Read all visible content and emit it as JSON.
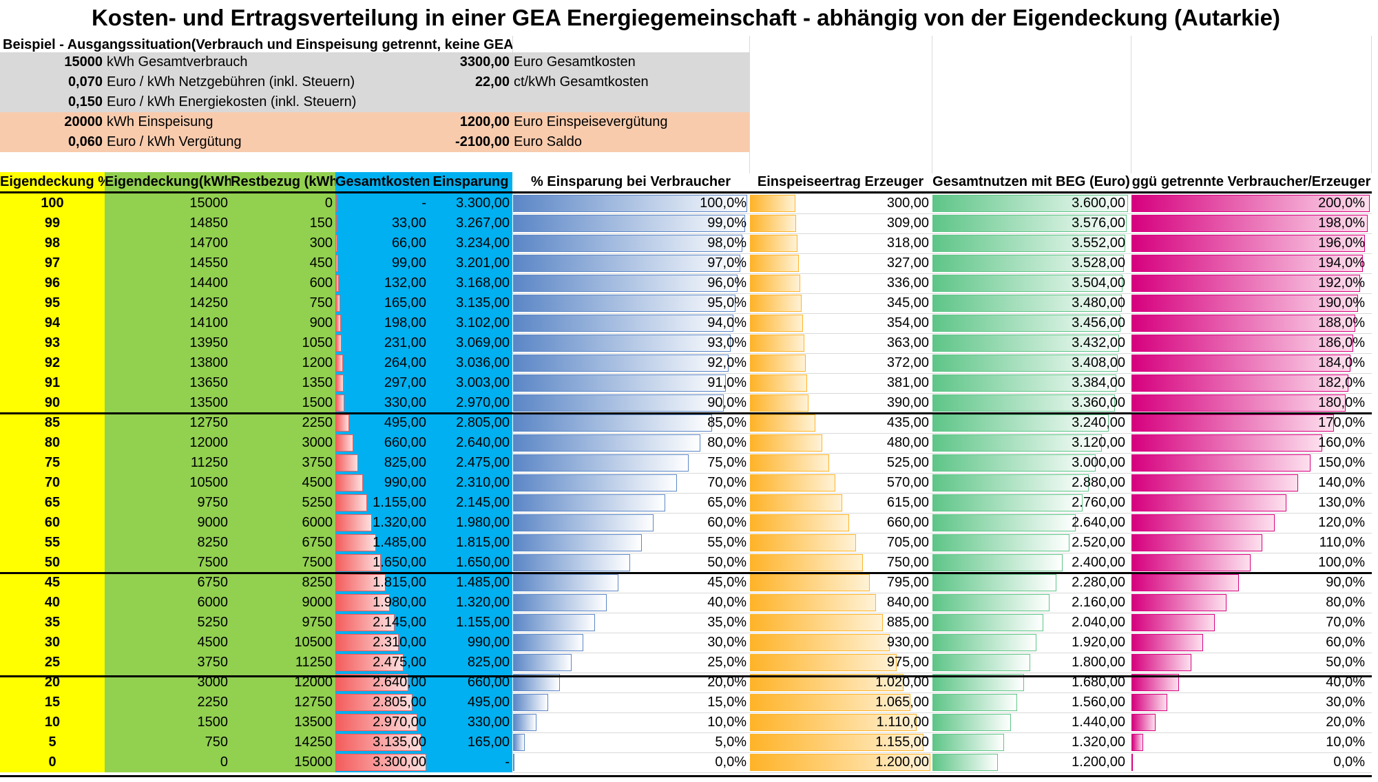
{
  "title": "Kosten- und Ertragsverteilung in einer GEA Energiegemeinschaft - abhängig von der Eigendeckung (Autarkie)",
  "example_heading": "Beispiel - Ausgangssituation(Verbrauch und Einspeisung getrennt, keine GEA):",
  "info_left": [
    {
      "num": "15000",
      "label": "kWh Gesamtverbrauch"
    },
    {
      "num": "0,070",
      "label": "Euro / kWh Netzgebühren (inkl. Steuern)"
    },
    {
      "num": "0,150",
      "label": "Euro / kWh Energiekosten (inkl. Steuern)"
    },
    {
      "num": "20000",
      "label": "kWh Einspeisung"
    },
    {
      "num": "0,060",
      "label": "Euro / kWh Vergütung"
    }
  ],
  "info_right": [
    {
      "num": "3300,00",
      "label": "Euro Gesamtkosten"
    },
    {
      "num": "22,00",
      "label": "ct/kWh Gesamtkosten"
    },
    {
      "num": "",
      "label": ""
    },
    {
      "num": "1200,00",
      "label": "Euro Einspeisevergütung"
    },
    {
      "num": "-2100,00",
      "label": "Euro Saldo"
    }
  ],
  "headers": {
    "eig_pct": "Eigendeckung %",
    "eig_kwh": "Eigendeckung(kWh)",
    "rest": "Restbezug (kWh)",
    "kosten": "Gesamtkosten",
    "einsp": "Einsparung",
    "pct_ver": "% Einsparung bei Verbraucher",
    "ertrag": "Einspeiseertrag Erzeuger",
    "nutzen": "Gesamtnutzen mit BEG (Euro)",
    "ggu": "ggü getrennte Verbraucher/Erzeuger"
  },
  "colors": {
    "yellow": "#ffff00",
    "green": "#92d050",
    "blue": "#00b0f0",
    "peach": "#f8cbad",
    "grey": "#d9d9d9"
  },
  "rows": [
    {
      "pct": "100",
      "kwh": "15000",
      "rest": "0",
      "kosten": "-",
      "einsp": "3.300,00",
      "pv": "100,0%",
      "er": "300,00",
      "nu": "3.600,00",
      "gg": "200,0%"
    },
    {
      "pct": "99",
      "kwh": "14850",
      "rest": "150",
      "kosten": "33,00",
      "einsp": "3.267,00",
      "pv": "99,0%",
      "er": "309,00",
      "nu": "3.576,00",
      "gg": "198,0%"
    },
    {
      "pct": "98",
      "kwh": "14700",
      "rest": "300",
      "kosten": "66,00",
      "einsp": "3.234,00",
      "pv": "98,0%",
      "er": "318,00",
      "nu": "3.552,00",
      "gg": "196,0%"
    },
    {
      "pct": "97",
      "kwh": "14550",
      "rest": "450",
      "kosten": "99,00",
      "einsp": "3.201,00",
      "pv": "97,0%",
      "er": "327,00",
      "nu": "3.528,00",
      "gg": "194,0%"
    },
    {
      "pct": "96",
      "kwh": "14400",
      "rest": "600",
      "kosten": "132,00",
      "einsp": "3.168,00",
      "pv": "96,0%",
      "er": "336,00",
      "nu": "3.504,00",
      "gg": "192,0%"
    },
    {
      "pct": "95",
      "kwh": "14250",
      "rest": "750",
      "kosten": "165,00",
      "einsp": "3.135,00",
      "pv": "95,0%",
      "er": "345,00",
      "nu": "3.480,00",
      "gg": "190,0%"
    },
    {
      "pct": "94",
      "kwh": "14100",
      "rest": "900",
      "kosten": "198,00",
      "einsp": "3.102,00",
      "pv": "94,0%",
      "er": "354,00",
      "nu": "3.456,00",
      "gg": "188,0%"
    },
    {
      "pct": "93",
      "kwh": "13950",
      "rest": "1050",
      "kosten": "231,00",
      "einsp": "3.069,00",
      "pv": "93,0%",
      "er": "363,00",
      "nu": "3.432,00",
      "gg": "186,0%"
    },
    {
      "pct": "92",
      "kwh": "13800",
      "rest": "1200",
      "kosten": "264,00",
      "einsp": "3.036,00",
      "pv": "92,0%",
      "er": "372,00",
      "nu": "3.408,00",
      "gg": "184,0%"
    },
    {
      "pct": "91",
      "kwh": "13650",
      "rest": "1350",
      "kosten": "297,00",
      "einsp": "3.003,00",
      "pv": "91,0%",
      "er": "381,00",
      "nu": "3.384,00",
      "gg": "182,0%"
    },
    {
      "pct": "90",
      "kwh": "13500",
      "rest": "1500",
      "kosten": "330,00",
      "einsp": "2.970,00",
      "pv": "90,0%",
      "er": "390,00",
      "nu": "3.360,00",
      "gg": "180,0%"
    },
    {
      "pct": "85",
      "kwh": "12750",
      "rest": "2250",
      "kosten": "495,00",
      "einsp": "2.805,00",
      "pv": "85,0%",
      "er": "435,00",
      "nu": "3.240,00",
      "gg": "170,0%"
    },
    {
      "pct": "80",
      "kwh": "12000",
      "rest": "3000",
      "kosten": "660,00",
      "einsp": "2.640,00",
      "pv": "80,0%",
      "er": "480,00",
      "nu": "3.120,00",
      "gg": "160,0%"
    },
    {
      "pct": "75",
      "kwh": "11250",
      "rest": "3750",
      "kosten": "825,00",
      "einsp": "2.475,00",
      "pv": "75,0%",
      "er": "525,00",
      "nu": "3.000,00",
      "gg": "150,0%"
    },
    {
      "pct": "70",
      "kwh": "10500",
      "rest": "4500",
      "kosten": "990,00",
      "einsp": "2.310,00",
      "pv": "70,0%",
      "er": "570,00",
      "nu": "2.880,00",
      "gg": "140,0%"
    },
    {
      "pct": "65",
      "kwh": "9750",
      "rest": "5250",
      "kosten": "1.155,00",
      "einsp": "2.145,00",
      "pv": "65,0%",
      "er": "615,00",
      "nu": "2.760,00",
      "gg": "130,0%"
    },
    {
      "pct": "60",
      "kwh": "9000",
      "rest": "6000",
      "kosten": "1.320,00",
      "einsp": "1.980,00",
      "pv": "60,0%",
      "er": "660,00",
      "nu": "2.640,00",
      "gg": "120,0%"
    },
    {
      "pct": "55",
      "kwh": "8250",
      "rest": "6750",
      "kosten": "1.485,00",
      "einsp": "1.815,00",
      "pv": "55,0%",
      "er": "705,00",
      "nu": "2.520,00",
      "gg": "110,0%"
    },
    {
      "pct": "50",
      "kwh": "7500",
      "rest": "7500",
      "kosten": "1.650,00",
      "einsp": "1.650,00",
      "pv": "50,0%",
      "er": "750,00",
      "nu": "2.400,00",
      "gg": "100,0%"
    },
    {
      "pct": "45",
      "kwh": "6750",
      "rest": "8250",
      "kosten": "1.815,00",
      "einsp": "1.485,00",
      "pv": "45,0%",
      "er": "795,00",
      "nu": "2.280,00",
      "gg": "90,0%"
    },
    {
      "pct": "40",
      "kwh": "6000",
      "rest": "9000",
      "kosten": "1.980,00",
      "einsp": "1.320,00",
      "pv": "40,0%",
      "er": "840,00",
      "nu": "2.160,00",
      "gg": "80,0%"
    },
    {
      "pct": "35",
      "kwh": "5250",
      "rest": "9750",
      "kosten": "2.145,00",
      "einsp": "1.155,00",
      "pv": "35,0%",
      "er": "885,00",
      "nu": "2.040,00",
      "gg": "70,0%"
    },
    {
      "pct": "30",
      "kwh": "4500",
      "rest": "10500",
      "kosten": "2.310,00",
      "einsp": "990,00",
      "pv": "30,0%",
      "er": "930,00",
      "nu": "1.920,00",
      "gg": "60,0%"
    },
    {
      "pct": "25",
      "kwh": "3750",
      "rest": "11250",
      "kosten": "2.475,00",
      "einsp": "825,00",
      "pv": "25,0%",
      "er": "975,00",
      "nu": "1.800,00",
      "gg": "50,0%"
    },
    {
      "pct": "20",
      "kwh": "3000",
      "rest": "12000",
      "kosten": "2.640,00",
      "einsp": "660,00",
      "pv": "20,0%",
      "er": "1.020,00",
      "nu": "1.680,00",
      "gg": "40,0%"
    },
    {
      "pct": "15",
      "kwh": "2250",
      "rest": "12750",
      "kosten": "2.805,00",
      "einsp": "495,00",
      "pv": "15,0%",
      "er": "1.065,00",
      "nu": "1.560,00",
      "gg": "30,0%"
    },
    {
      "pct": "10",
      "kwh": "1500",
      "rest": "13500",
      "kosten": "2.970,00",
      "einsp": "330,00",
      "pv": "10,0%",
      "er": "1.110,00",
      "nu": "1.440,00",
      "gg": "20,0%"
    },
    {
      "pct": "5",
      "kwh": "750",
      "rest": "14250",
      "kosten": "3.135,00",
      "einsp": "165,00",
      "pv": "5,0%",
      "er": "1.155,00",
      "nu": "1.320,00",
      "gg": "10,0%"
    },
    {
      "pct": "0",
      "kwh": "0",
      "rest": "15000",
      "kosten": "3.300,00",
      "einsp": "-",
      "pv": "0,0%",
      "er": "1.200,00",
      "nu": "1.200,00",
      "gg": "0,0%"
    }
  ]
}
